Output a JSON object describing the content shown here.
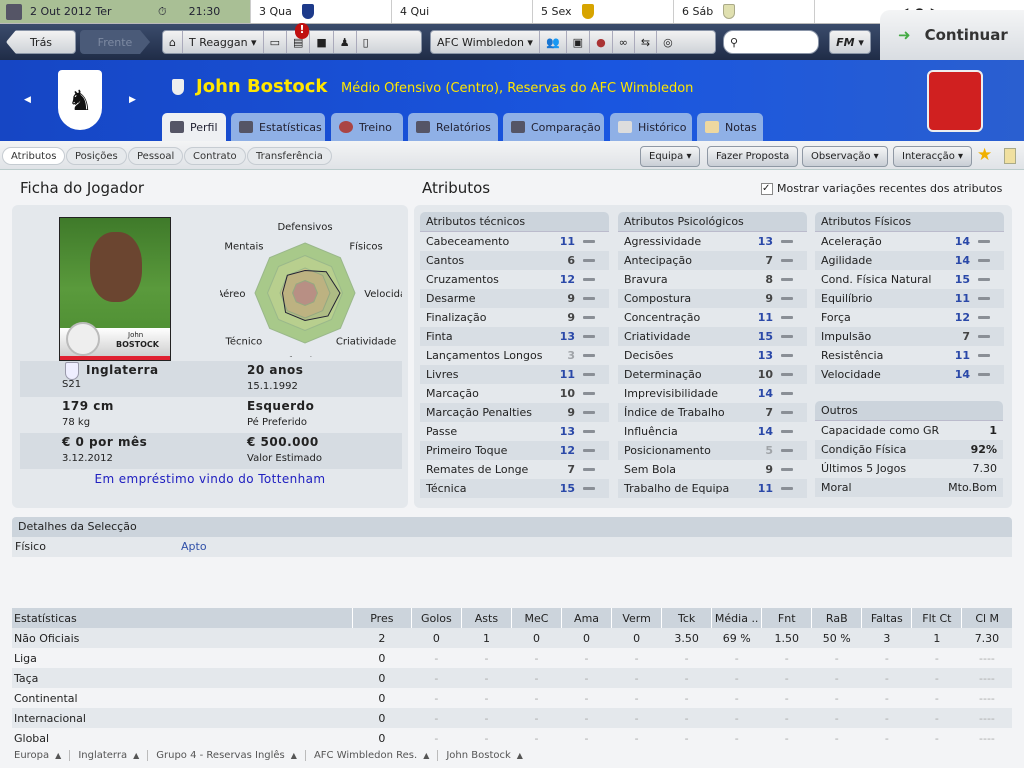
{
  "calendar": {
    "today": "2 Out 2012  Ter",
    "time": "21:30",
    "days": [
      {
        "label": "3 Qua",
        "crest": "#1d3a8a"
      },
      {
        "label": "4 Qui",
        "crest": ""
      },
      {
        "label": "5 Sex",
        "crest": "#d7a400"
      },
      {
        "label": "6 Sáb",
        "crest": "#e0e0b0"
      }
    ]
  },
  "nav": {
    "back": "Trás",
    "forward": "Frente",
    "manager": "T Reaggan",
    "club": "AFC Wimbledon",
    "search_placeholder": "",
    "fm": "FM",
    "continue": "Continuar",
    "notification_badge": "!"
  },
  "player": {
    "name": "John Bostock",
    "position": "Médio Ofensivo (Centro), Reservas do AFC Wimbledon",
    "card_first": "John",
    "card_last": "BOSTOCK"
  },
  "tabs": [
    "Perfil",
    "Estatísticas",
    "Treino",
    "Relatórios",
    "Comparação",
    "Histórico",
    "Notas"
  ],
  "subtabs": [
    "Atributos",
    "Posições",
    "Pessoal",
    "Contrato",
    "Transferência"
  ],
  "actions": {
    "equipa": "Equipa",
    "proposta": "Fazer Proposta",
    "observacao": "Observação",
    "interaccao": "Interacção"
  },
  "ficha": {
    "title": "Ficha do Jogador",
    "nation": "Inglaterra",
    "nation_sub": "S21",
    "age": "20 anos",
    "dob": "15.1.1992",
    "height": "179 cm",
    "weight": "78 kg",
    "foot": "Esquerdo",
    "foot_label": "Pé Preferido",
    "wage": "€ 0 por mês",
    "contract": "3.12.2012",
    "value": "€ 500.000",
    "value_label": "Valor Estimado",
    "loan": "Em empréstimo vindo do Tottenham"
  },
  "radar": {
    "scale_max": 20,
    "axes": [
      {
        "label": "Defensivos",
        "value": 9
      },
      {
        "label": "Físicos",
        "value": 12
      },
      {
        "label": "Velocidade",
        "value": 14
      },
      {
        "label": "Criatividade",
        "value": 13
      },
      {
        "label": "Ofensivos",
        "value": 11
      },
      {
        "label": "Técnico",
        "value": 11
      },
      {
        "label": "Jogo Aéreo",
        "value": 9
      },
      {
        "label": "Mentais",
        "value": 10
      }
    ]
  },
  "attributes": {
    "title": "Atributos",
    "show_changes": "Mostrar variações recentes dos atributos",
    "groups": [
      {
        "title": "Atributos técnicos",
        "items": [
          [
            "Cabeceamento",
            11
          ],
          [
            "Cantos",
            6
          ],
          [
            "Cruzamentos",
            12
          ],
          [
            "Desarme",
            9
          ],
          [
            "Finalização",
            9
          ],
          [
            "Finta",
            13
          ],
          [
            "Lançamentos Longos",
            3
          ],
          [
            "Livres",
            11
          ],
          [
            "Marcação",
            10
          ],
          [
            "Marcação Penalties",
            9
          ],
          [
            "Passe",
            13
          ],
          [
            "Primeiro Toque",
            12
          ],
          [
            "Remates de Longe",
            7
          ],
          [
            "Técnica",
            15
          ]
        ]
      },
      {
        "title": "Atributos Psicológicos",
        "items": [
          [
            "Agressividade",
            13
          ],
          [
            "Antecipação",
            7
          ],
          [
            "Bravura",
            8
          ],
          [
            "Compostura",
            9
          ],
          [
            "Concentração",
            11
          ],
          [
            "Criatividade",
            15
          ],
          [
            "Decisões",
            13
          ],
          [
            "Determinação",
            10
          ],
          [
            "Imprevisibilidade",
            14
          ],
          [
            "Índice de Trabalho",
            7
          ],
          [
            "Influência",
            14
          ],
          [
            "Posicionamento",
            5
          ],
          [
            "Sem Bola",
            9
          ],
          [
            "Trabalho de Equipa",
            11
          ]
        ]
      },
      {
        "title": "Atributos Físicos",
        "items": [
          [
            "Aceleração",
            14
          ],
          [
            "Agilidade",
            14
          ],
          [
            "Cond. Física Natural",
            15
          ],
          [
            "Equilíbrio",
            11
          ],
          [
            "Força",
            12
          ],
          [
            "Impulsão",
            7
          ],
          [
            "Resistência",
            11
          ],
          [
            "Velocidade",
            14
          ]
        ]
      }
    ],
    "outros": {
      "title": "Outros",
      "items": [
        [
          "Capacidade como GR",
          "1"
        ],
        [
          "Condição Física",
          "92%"
        ],
        [
          "Últimos 5 Jogos",
          "7.30"
        ],
        [
          "Moral",
          "Mto.Bom"
        ]
      ]
    }
  },
  "selection": {
    "title": "Detalhes da Selecção",
    "label": "Físico",
    "value": "Apto"
  },
  "stats": {
    "headers": [
      "Estatísticas",
      "Pres",
      "Golos",
      "Asts",
      "MeC",
      "Ama",
      "Verm",
      "Tck",
      "Média ..",
      "Fnt",
      "RaB",
      "Faltas",
      "Flt Ct",
      "Cl M"
    ],
    "rows": [
      [
        "Não Oficiais",
        "2",
        "0",
        "1",
        "0",
        "0",
        "0",
        "3.50",
        "69 %",
        "1.50",
        "50 %",
        "3",
        "1",
        "7.30"
      ],
      [
        "Liga",
        "0",
        "-",
        "-",
        "-",
        "-",
        "-",
        "-",
        "-",
        "-",
        "-",
        "-",
        "-",
        "----"
      ],
      [
        "Taça",
        "0",
        "-",
        "-",
        "-",
        "-",
        "-",
        "-",
        "-",
        "-",
        "-",
        "-",
        "-",
        "----"
      ],
      [
        "Continental",
        "0",
        "-",
        "-",
        "-",
        "-",
        "-",
        "-",
        "-",
        "-",
        "-",
        "-",
        "-",
        "----"
      ],
      [
        "Internacional",
        "0",
        "-",
        "-",
        "-",
        "-",
        "-",
        "-",
        "-",
        "-",
        "-",
        "-",
        "-",
        "----"
      ],
      [
        "Global",
        "0",
        "-",
        "-",
        "-",
        "-",
        "-",
        "-",
        "-",
        "-",
        "-",
        "-",
        "-",
        "----"
      ]
    ]
  },
  "breadcrumb": [
    "Europa",
    "Inglaterra",
    "Grupo 4 - Reservas Inglês",
    "AFC Wimbledon Res.",
    "John Bostock"
  ],
  "colors": {
    "header_blue": "#1a4fd0",
    "name_yellow": "#ffe600",
    "attr_high": "#2a48a8",
    "loan_link": "#2020c0"
  }
}
